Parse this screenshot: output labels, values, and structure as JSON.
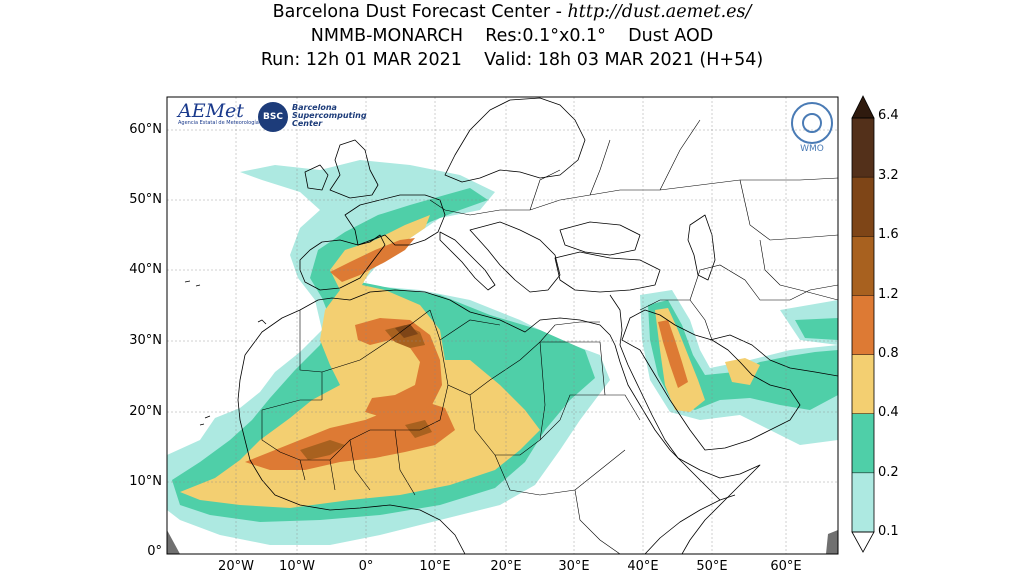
{
  "header": {
    "line1_prefix": "Barcelona Dust Forecast Center - ",
    "line1_url": "http://dust.aemet.es/",
    "line2": "NMMB-MONARCH    Res:0.1°x0.1°    Dust AOD",
    "line3": "Run: 12h 01 MAR 2021    Valid: 18h 03 MAR 2021 (H+54)"
  },
  "logos": {
    "aemet": "AEMet",
    "aemet_sub": "Agencia Estatal de Meteorología",
    "bsc": "BSC",
    "bsc_text": "Barcelona Supercomputing Center",
    "wmo": "WMO"
  },
  "axes": {
    "lat_labels": [
      "60°N",
      "50°N",
      "40°N",
      "30°N",
      "20°N",
      "10°N",
      "0°"
    ],
    "lon_labels": [
      "20°W",
      "10°W",
      "0°",
      "10°E",
      "20°E",
      "30°E",
      "40°E",
      "50°E",
      "60°E"
    ]
  },
  "colorbar": {
    "ticks": [
      "6.4",
      "3.2",
      "1.6",
      "1.2",
      "0.8",
      "0.4",
      "0.2",
      "0.1"
    ],
    "colors": [
      "#ade9e1",
      "#4fcfa8",
      "#f3cf71",
      "#dd7a34",
      "#a8611f",
      "#7e4517",
      "#53301a",
      "#2f1a0e"
    ]
  },
  "map": {
    "bounds": {
      "lon_min": -27,
      "lon_max": 67,
      "lat_min": 0,
      "lat_max": 65
    },
    "land_fill": "#ffffff",
    "border_color": "#000000"
  }
}
